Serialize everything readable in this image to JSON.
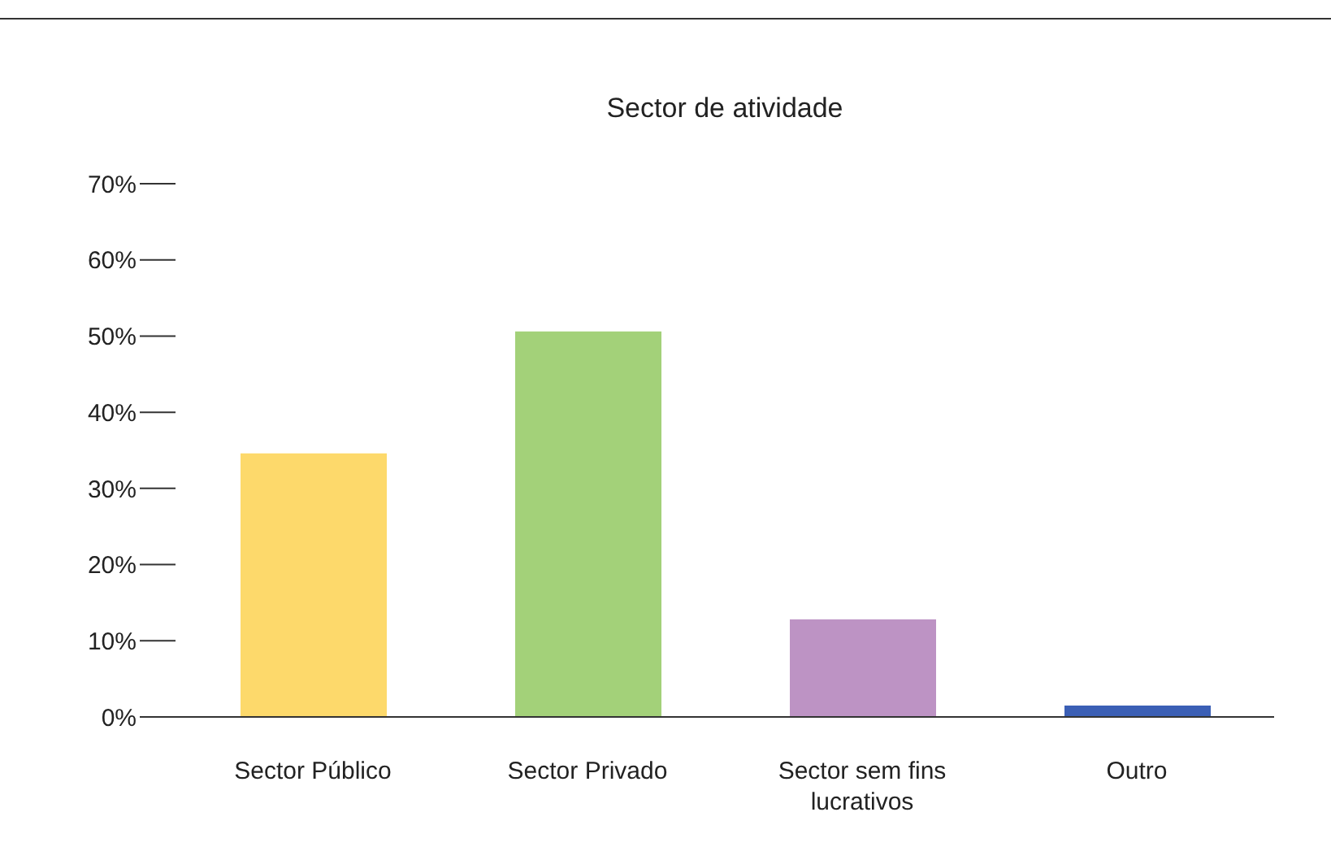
{
  "chart_data": {
    "type": "bar",
    "title": "Sector de atividade",
    "categories": [
      "Sector Público",
      "Sector Privado",
      "Sector sem fins lucrativos",
      "Outro"
    ],
    "values": [
      34.6,
      50.6,
      12.8,
      1.5
    ],
    "colors": [
      "#fdd96b",
      "#a3d179",
      "#bd93c4",
      "#3b5fb5"
    ],
    "ylim": [
      0,
      70
    ],
    "yticks": [
      {
        "value": 0,
        "label": "0%"
      },
      {
        "value": 10,
        "label": "10%"
      },
      {
        "value": 20,
        "label": "20%"
      },
      {
        "value": 30,
        "label": "30%"
      },
      {
        "value": 40,
        "label": "40%"
      },
      {
        "value": 50,
        "label": "50%"
      },
      {
        "value": 60,
        "label": "60%"
      },
      {
        "value": 70,
        "label": "70%"
      }
    ],
    "grid": false,
    "legend": false
  }
}
